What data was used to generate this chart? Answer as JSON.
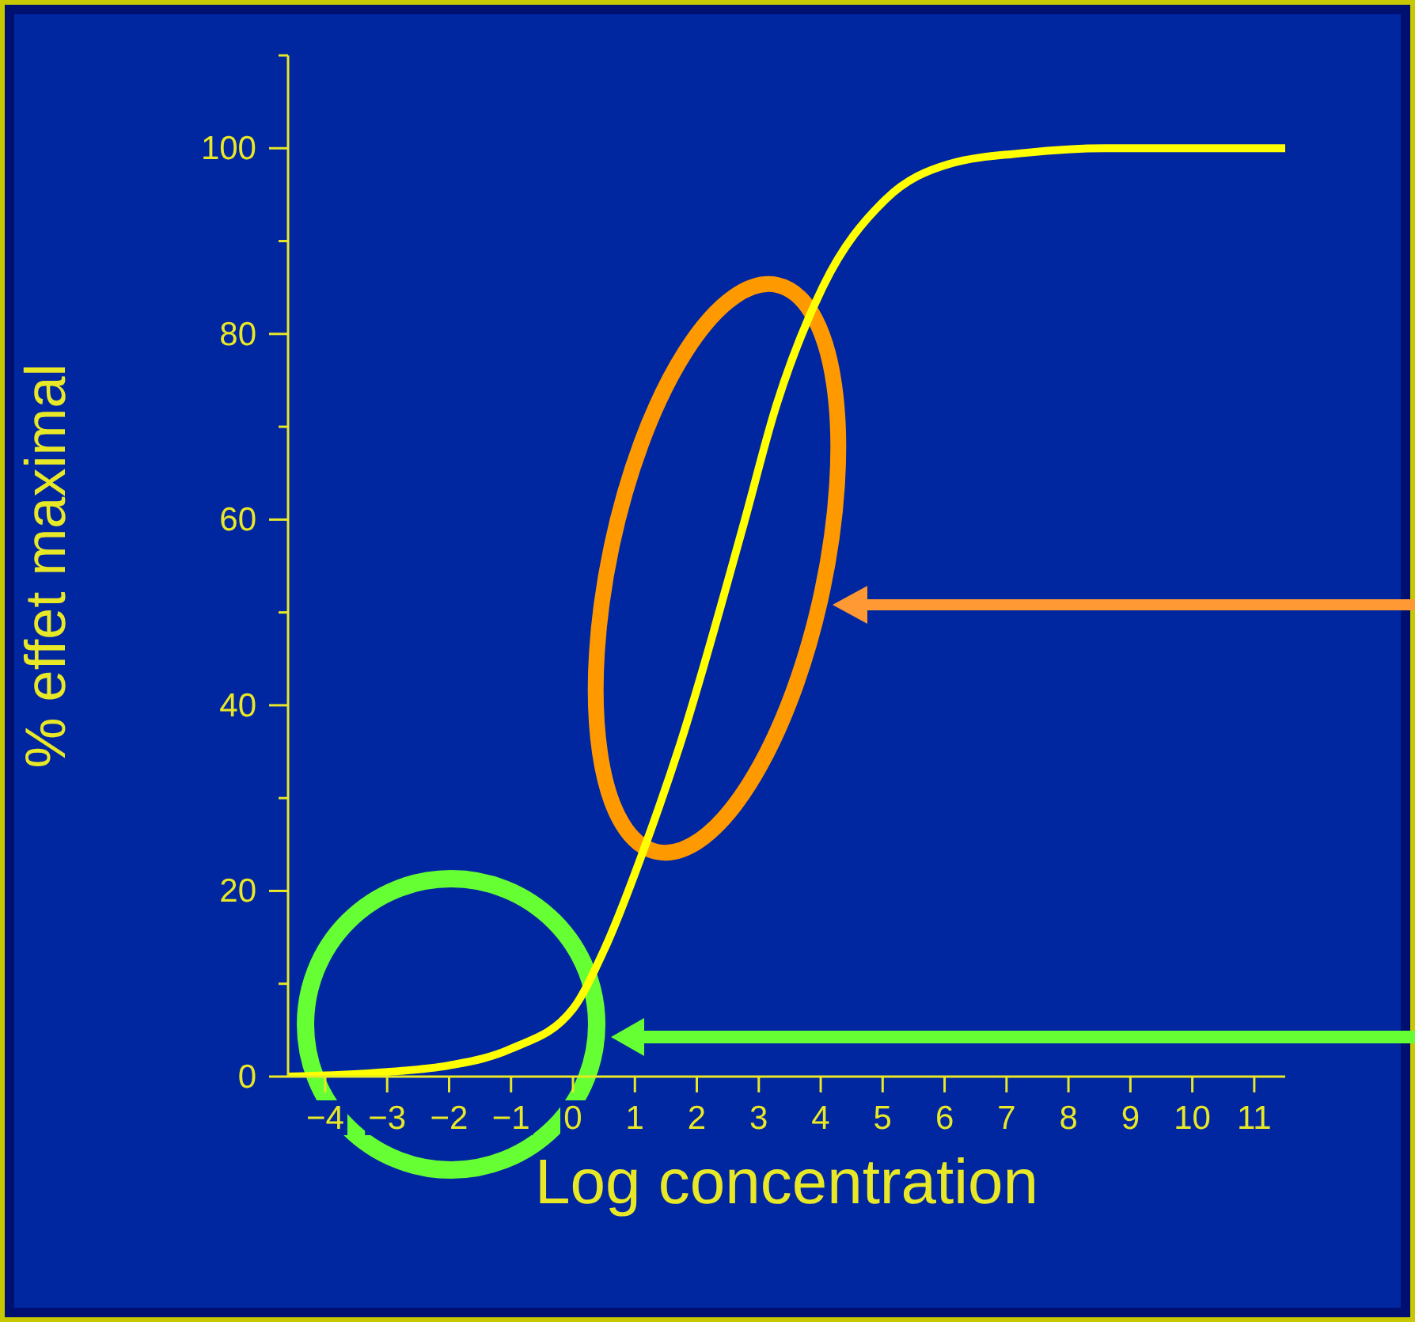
{
  "chart_data": {
    "type": "line",
    "xlabel": "Log concentration",
    "ylabel": "% effet maximal",
    "x": [
      -4.6,
      -3,
      -2,
      -1,
      0,
      0.5,
      1.2,
      1.73,
      2.76,
      3.27,
      4.03,
      5.05,
      6.07,
      7.3,
      8.6,
      11.5
    ],
    "series": [
      {
        "color": "#ffff00",
        "values": [
          0,
          0.5,
          1.2,
          3,
          7.3,
          13.6,
          25.5,
          35.8,
          59.6,
          72,
          85,
          94.5,
          98.3,
          99.5,
          100,
          100
        ]
      }
    ],
    "xlim": [
      -4.6,
      11.5
    ],
    "xticks": [
      -4,
      -3,
      -2,
      -1,
      0,
      1,
      2,
      3,
      4,
      5,
      6,
      7,
      8,
      9,
      10,
      11
    ],
    "ylim": [
      0,
      110
    ],
    "yticks": [
      0,
      {
        "value": 10,
        "label": null
      },
      20,
      {
        "value": 30,
        "label": null
      },
      40,
      {
        "value": 50,
        "label": null
      },
      60,
      {
        "value": 70,
        "label": null
      },
      80,
      {
        "value": 90,
        "label": null
      },
      100,
      {
        "value": 110,
        "label": null
      }
    ],
    "marker": "none",
    "line_style": "solid"
  }
}
